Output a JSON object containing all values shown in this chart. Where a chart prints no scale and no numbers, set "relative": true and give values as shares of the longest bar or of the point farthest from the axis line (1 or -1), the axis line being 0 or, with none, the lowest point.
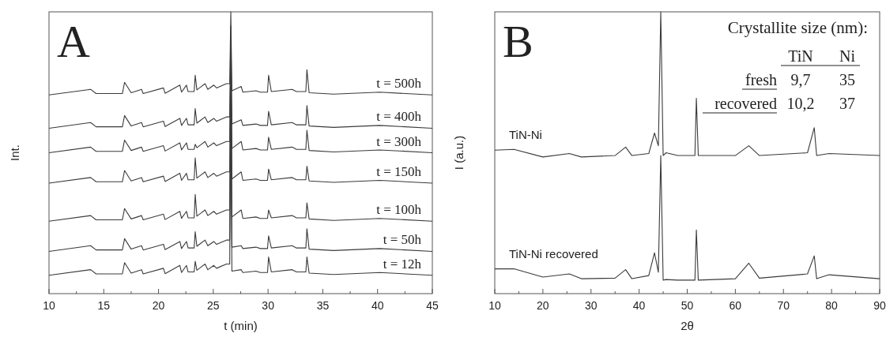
{
  "chart_data": [
    {
      "type": "line",
      "title": "A",
      "xlabel": "t (min)",
      "ylabel": "Int.",
      "relative": true,
      "marker": "none",
      "line_style": "solid",
      "grid": false,
      "xlim": [
        10,
        45
      ],
      "xticks": [
        10,
        {
          "value": 12.5,
          "label": null
        },
        15,
        {
          "value": 17.5,
          "label": null
        },
        20,
        {
          "value": 22.5,
          "label": null
        },
        25,
        {
          "value": 27.5,
          "label": null
        },
        30,
        {
          "value": 32.5,
          "label": null
        },
        35,
        {
          "value": 37.5,
          "label": null
        },
        40,
        {
          "value": 42.5,
          "label": null
        },
        45
      ],
      "x": [
        10,
        13.8,
        14.3,
        16.7,
        16.9,
        17.5,
        18.45,
        18.6,
        20.45,
        20.6,
        21.95,
        22.1,
        22.55,
        22.7,
        23.25,
        23.35,
        23.5,
        24.25,
        24.5,
        25.05,
        25.3,
        26.2,
        26.5,
        26.6,
        26.7,
        27.55,
        27.7,
        28.9,
        29.3,
        29.95,
        30.05,
        30.3,
        32.2,
        32.6,
        33.45,
        33.55,
        33.75,
        36,
        40.2,
        45
      ],
      "series": [
        {
          "name": "t = 500h",
          "color": "#3a3a3a",
          "values": [
            0.705,
            0.725,
            0.71,
            0.71,
            0.75,
            0.713,
            0.725,
            0.71,
            0.73,
            0.711,
            0.74,
            0.715,
            0.74,
            0.717,
            0.717,
            0.775,
            0.723,
            0.745,
            0.725,
            0.74,
            0.73,
            0.745,
            0.745,
            1,
            0.72,
            0.735,
            0.715,
            0.72,
            0.715,
            0.715,
            0.775,
            0.717,
            0.725,
            0.717,
            0.717,
            0.795,
            0.713,
            0.708,
            0.715,
            0.705
          ]
        },
        {
          "name": "t = 400h",
          "color": "#3a3a3a",
          "values": [
            0.587,
            0.607,
            0.592,
            0.592,
            0.632,
            0.595,
            0.607,
            0.592,
            0.612,
            0.593,
            0.622,
            0.597,
            0.622,
            0.599,
            0.599,
            0.657,
            0.605,
            0.627,
            0.607,
            0.622,
            0.612,
            0.627,
            0.627,
            0.95,
            0.602,
            0.617,
            0.597,
            0.602,
            0.597,
            0.597,
            0.647,
            0.599,
            0.607,
            0.599,
            0.599,
            0.667,
            0.595,
            0.59,
            0.597,
            0.587
          ]
        },
        {
          "name": "t = 300h",
          "color": "#3a3a3a",
          "values": [
            0.5,
            0.52,
            0.505,
            0.505,
            0.545,
            0.508,
            0.52,
            0.505,
            0.525,
            0.506,
            0.535,
            0.51,
            0.535,
            0.512,
            0.512,
            0.53,
            0.518,
            0.54,
            0.52,
            0.535,
            0.525,
            0.54,
            0.54,
            0.9,
            0.515,
            0.54,
            0.51,
            0.515,
            0.51,
            0.51,
            0.555,
            0.512,
            0.52,
            0.512,
            0.512,
            0.58,
            0.508,
            0.503,
            0.51,
            0.5
          ]
        },
        {
          "name": "t = 150h",
          "color": "#3a3a3a",
          "values": [
            0.392,
            0.412,
            0.397,
            0.397,
            0.437,
            0.4,
            0.412,
            0.397,
            0.417,
            0.398,
            0.427,
            0.402,
            0.427,
            0.404,
            0.404,
            0.482,
            0.41,
            0.432,
            0.412,
            0.427,
            0.417,
            0.432,
            0.432,
            0.85,
            0.407,
            0.432,
            0.402,
            0.407,
            0.402,
            0.402,
            0.442,
            0.404,
            0.412,
            0.404,
            0.404,
            0.452,
            0.4,
            0.395,
            0.402,
            0.392
          ]
        },
        {
          "name": "t = 100h",
          "color": "#3a3a3a",
          "values": [
            0.257,
            0.277,
            0.262,
            0.262,
            0.302,
            0.265,
            0.277,
            0.262,
            0.282,
            0.263,
            0.292,
            0.267,
            0.292,
            0.269,
            0.269,
            0.352,
            0.275,
            0.297,
            0.277,
            0.292,
            0.282,
            0.297,
            0.297,
            0.8,
            0.272,
            0.297,
            0.267,
            0.272,
            0.267,
            0.267,
            0.297,
            0.269,
            0.277,
            0.269,
            0.269,
            0.322,
            0.265,
            0.26,
            0.267,
            0.257
          ]
        },
        {
          "name": "t = 50h",
          "color": "#3a3a3a",
          "values": [
            0.15,
            0.17,
            0.155,
            0.155,
            0.195,
            0.158,
            0.17,
            0.155,
            0.175,
            0.156,
            0.185,
            0.16,
            0.185,
            0.162,
            0.162,
            0.22,
            0.168,
            0.19,
            0.17,
            0.185,
            0.175,
            0.19,
            0.19,
            0.75,
            0.165,
            0.17,
            0.16,
            0.165,
            0.16,
            0.16,
            0.205,
            0.162,
            0.17,
            0.162,
            0.162,
            0.23,
            0.158,
            0.153,
            0.16,
            0.15
          ]
        },
        {
          "name": "t = 12h",
          "color": "#3a3a3a",
          "values": [
            0.065,
            0.085,
            0.07,
            0.07,
            0.11,
            0.073,
            0.085,
            0.07,
            0.09,
            0.071,
            0.1,
            0.075,
            0.1,
            0.077,
            0.077,
            0.115,
            0.083,
            0.105,
            0.085,
            0.1,
            0.09,
            0.105,
            0.105,
            0.7,
            0.08,
            0.085,
            0.075,
            0.08,
            0.075,
            0.075,
            0.13,
            0.077,
            0.085,
            0.077,
            0.077,
            0.13,
            0.073,
            0.068,
            0.075,
            0.065
          ]
        }
      ]
    },
    {
      "type": "line",
      "title": "B",
      "xlabel": "2θ",
      "ylabel": "I (a.u.)",
      "relative": true,
      "marker": "none",
      "line_style": "solid",
      "grid": false,
      "annotations": [
        "Crystallite size (nm):",
        "TiN",
        "Ni",
        "fresh",
        "9,7",
        "35",
        "recovered",
        "10,2",
        "37"
      ],
      "xlim": [
        10,
        90
      ],
      "xticks": [
        10,
        {
          "value": 15,
          "label": null
        },
        20,
        {
          "value": 25,
          "label": null
        },
        30,
        {
          "value": 35,
          "label": null
        },
        40,
        {
          "value": 45,
          "label": null
        },
        50,
        {
          "value": 55,
          "label": null
        },
        60,
        {
          "value": 65,
          "label": null
        },
        70,
        {
          "value": 75,
          "label": null
        },
        80,
        {
          "value": 85,
          "label": null
        },
        90
      ],
      "x": [
        10,
        14,
        20,
        25.5,
        28,
        35,
        37.2,
        38.5,
        42,
        43.2,
        44,
        44.5,
        45,
        45.6,
        48,
        51.6,
        51.9,
        52.3,
        60,
        62.8,
        65,
        75,
        76.4,
        76.9,
        79.5,
        90
      ],
      "series": [
        {
          "name": "TiN-Ni",
          "color": "#3a3a3a",
          "values": [
            0.509,
            0.512,
            0.485,
            0.497,
            0.485,
            0.49,
            0.52,
            0.49,
            0.497,
            0.57,
            0.525,
            1,
            0.49,
            0.5,
            0.49,
            0.49,
            0.693,
            0.49,
            0.49,
            0.525,
            0.49,
            0.5,
            0.589,
            0.49,
            0.497,
            0.49
          ]
        },
        {
          "name": "TiN-Ni recovered",
          "color": "#3a3a3a",
          "values": [
            0.088,
            0.088,
            0.059,
            0.07,
            0.053,
            0.055,
            0.085,
            0.053,
            0.064,
            0.145,
            0.076,
            0.49,
            0.048,
            0.05,
            0.048,
            0.048,
            0.226,
            0.048,
            0.053,
            0.108,
            0.055,
            0.07,
            0.134,
            0.053,
            0.067,
            0.053
          ]
        }
      ]
    }
  ]
}
